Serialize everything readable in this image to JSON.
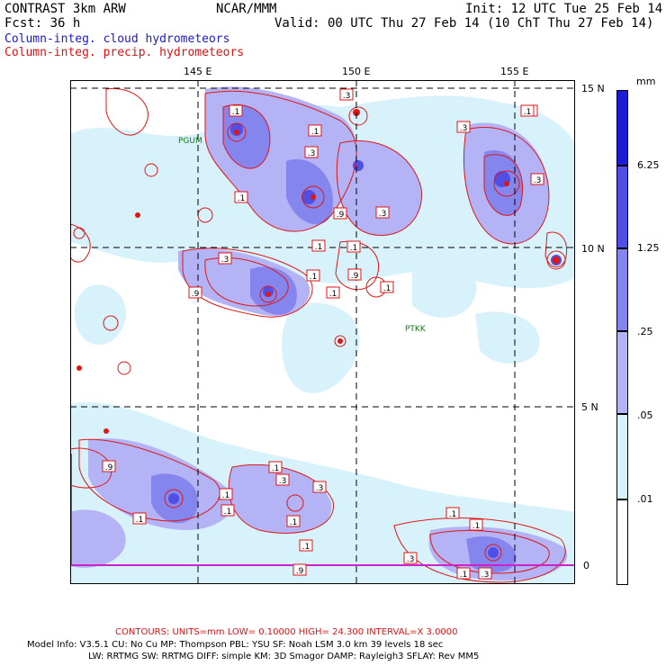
{
  "header": {
    "model_line": "CONTRAST  3km ARW",
    "forecast_line": "Fcst:   36 h",
    "center": "NCAR/MMM",
    "init": "Init: 12 UTC Tue 25 Feb 14",
    "valid": "Valid: 00 UTC Thu 27 Feb 14 (10 ChT Thu 27 Feb 14)",
    "field_cloud": "Column-integ. cloud hydrometeors",
    "field_precip": "Column-integ. precip. hydrometeors"
  },
  "axes": {
    "lon_labels": [
      "145 E",
      "150 E",
      "155 E"
    ],
    "lat_labels": [
      "15 N",
      "10 N",
      "5 N",
      "0"
    ]
  },
  "places": {
    "pgum": "PGUM",
    "ptkk": "PTKK"
  },
  "contour_labels": [
    ".3",
    ".1",
    ".1",
    ".3",
    ".1",
    ".3",
    ".9",
    ".3",
    ".1",
    ".3",
    ".1",
    ".3",
    ".9",
    ".9",
    ".1",
    ".1",
    ".1",
    ".1",
    ".9",
    ".1",
    ".1",
    ".3",
    ".3",
    ".1",
    ".1",
    ".1",
    ".1",
    ".1",
    ".1",
    ".3",
    ".1",
    ".3",
    ".9",
    ".1"
  ],
  "colorbar": {
    "unit": "mm",
    "levels": [
      "6.25",
      "1.25",
      ".25",
      ".05",
      ".01"
    ],
    "colors": [
      "#1c1cd4",
      "#4f4fe6",
      "#8585ee",
      "#b3b3f6",
      "#d8f2fb",
      "#ffffff"
    ]
  },
  "footer": {
    "contours": "CONTOURS:  UNITS=mm  LOW= 0.10000      HIGH= 24.300      INTERVAL=X  3.0000",
    "model_info": "Model Info: V3.5.1     CU: No Cu     MP: Thompson     PBL: YSU       SF: Noah LSM      3.0 km   39 levels    18 sec",
    "model_info2": "LW: RRTMG    SW: RRTMG   DIFF: simple KM: 3D Smagor DAMP: Rayleigh3   SFLAY: Rev MM5"
  }
}
